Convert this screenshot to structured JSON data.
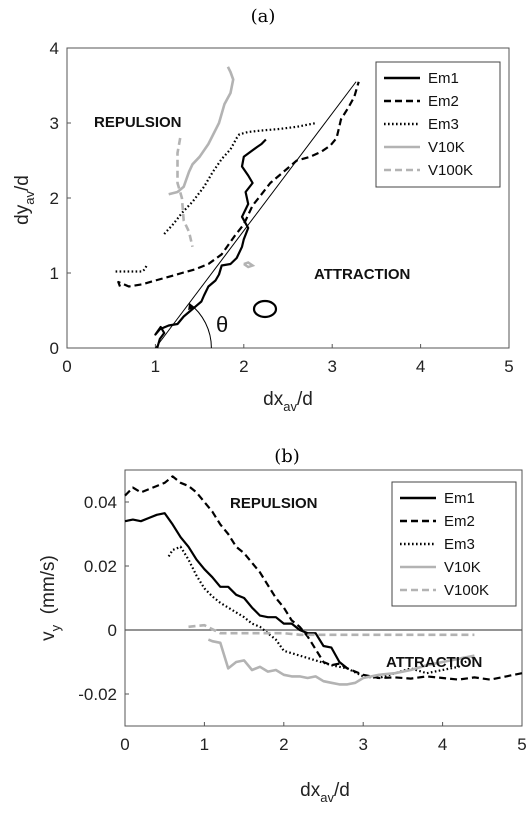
{
  "colors": {
    "black": "#000000",
    "gray": "#b3b3b3"
  },
  "chart_data": [
    {
      "panel_label": "(a)",
      "type": "line",
      "xlabel": {
        "main": "dx",
        "sub": "av",
        "tail": "/d"
      },
      "ylabel": {
        "main": "dy",
        "sub": "av",
        "tail": "/d"
      },
      "xlim": [
        0,
        5
      ],
      "ylim": [
        0,
        4
      ],
      "xticks": [
        "0",
        "1",
        "2",
        "3",
        "4",
        "5"
      ],
      "yticks": [
        "0",
        "1",
        "2",
        "3",
        "4"
      ],
      "annotations": {
        "repulsion": "REPULSION",
        "attraction": "ATTRACTION",
        "theta": "θ"
      },
      "legend": {
        "position": "top-right"
      },
      "series": [
        {
          "name": "Em1",
          "style": "solid",
          "color": "#000000",
          "x": [
            1.02,
            1.05,
            1.1,
            1.06,
            1.0,
            1.05,
            1.15,
            1.25,
            1.32,
            1.4,
            1.45,
            1.52,
            1.55,
            1.6,
            1.68,
            1.72,
            1.75,
            1.85,
            1.92,
            1.98,
            2.0,
            2.05,
            1.98,
            2.05,
            2.02,
            2.1,
            2.05,
            1.98,
            2.0,
            2.08,
            2.15,
            2.2,
            2.25
          ],
          "y": [
            0.0,
            0.12,
            0.2,
            0.28,
            0.18,
            0.25,
            0.3,
            0.32,
            0.42,
            0.5,
            0.55,
            0.62,
            0.7,
            0.82,
            0.9,
            0.98,
            1.1,
            1.12,
            1.2,
            1.35,
            1.45,
            1.6,
            1.75,
            1.92,
            2.08,
            2.2,
            2.3,
            2.42,
            2.55,
            2.62,
            2.68,
            2.72,
            2.78
          ]
        },
        {
          "name": "Em2",
          "style": "dashed",
          "color": "#000000",
          "x": [
            0.6,
            0.58,
            0.7,
            0.85,
            1.0,
            1.15,
            1.3,
            1.45,
            1.6,
            1.75,
            1.9,
            2.0,
            2.1,
            2.2,
            2.3,
            2.4,
            2.5,
            2.6,
            2.75,
            2.88,
            2.98,
            3.05,
            3.1,
            3.18,
            3.25,
            3.3
          ],
          "y": [
            0.82,
            0.88,
            0.82,
            0.85,
            0.9,
            0.95,
            1.0,
            1.05,
            1.12,
            1.25,
            1.5,
            1.65,
            1.9,
            2.05,
            2.2,
            2.3,
            2.4,
            2.5,
            2.55,
            2.62,
            2.7,
            2.8,
            3.05,
            3.2,
            3.35,
            3.55
          ]
        },
        {
          "name": "Em3",
          "style": "dotted",
          "color": "#000000",
          "x": [
            1.1,
            1.2,
            1.3,
            1.42,
            1.55,
            1.65,
            1.75,
            1.85,
            1.92,
            1.95,
            2.05,
            2.2,
            2.4,
            2.6,
            2.82
          ],
          "y": [
            1.52,
            1.65,
            1.8,
            1.95,
            2.15,
            2.35,
            2.52,
            2.65,
            2.8,
            2.85,
            2.88,
            2.9,
            2.92,
            2.95,
            3.0
          ],
          "tail_x": [
            0.55,
            0.7,
            0.85,
            0.88,
            0.9
          ],
          "tail_y": [
            1.02,
            1.02,
            1.02,
            1.05,
            1.1
          ]
        },
        {
          "name": "V10K",
          "style": "solid",
          "color": "#b3b3b3",
          "x": [
            1.15,
            1.25,
            1.32,
            1.38,
            1.42,
            1.5,
            1.6,
            1.72,
            1.78,
            1.85,
            1.88,
            1.85,
            1.82
          ],
          "y": [
            2.05,
            2.08,
            2.15,
            2.35,
            2.45,
            2.55,
            2.72,
            3.0,
            3.25,
            3.4,
            3.58,
            3.68,
            3.75
          ],
          "blob_x": [
            2.0,
            2.05,
            2.1,
            2.05,
            2.0
          ],
          "blob_y": [
            1.12,
            1.08,
            1.1,
            1.14,
            1.12
          ]
        },
        {
          "name": "V100K",
          "style": "dashed",
          "color": "#b3b3b3",
          "x": [
            1.28,
            1.25,
            1.25,
            1.3,
            1.32,
            1.38,
            1.42
          ],
          "y": [
            2.8,
            2.6,
            2.2,
            2.0,
            1.7,
            1.55,
            1.35
          ]
        }
      ],
      "extras": {
        "ref_line_x": [
          1.0,
          3.27
        ],
        "ref_line_y": [
          0.0,
          3.55
        ],
        "theta_arc_center": [
          1.0,
          0.0
        ]
      }
    },
    {
      "panel_label": "(b)",
      "type": "line",
      "xlabel": {
        "main": "dx",
        "sub": "av",
        "tail": "/d"
      },
      "ylabel": {
        "main": "v",
        "sub": "y",
        "tail": "  (mm/s)"
      },
      "xlim": [
        0,
        5
      ],
      "ylim": [
        -0.03,
        0.05
      ],
      "xticks": [
        "0",
        "1",
        "2",
        "3",
        "4",
        "5"
      ],
      "yticks": [
        "-0.02",
        "0",
        "0.02",
        "0.04"
      ],
      "annotations": {
        "repulsion": "REPULSION",
        "attraction": "ATTRACTION"
      },
      "legend": {
        "position": "top-right"
      },
      "series": [
        {
          "name": "Em1",
          "style": "solid",
          "color": "#000000",
          "x": [
            0.0,
            0.1,
            0.2,
            0.3,
            0.4,
            0.5,
            0.6,
            0.7,
            0.8,
            0.9,
            1.0,
            1.1,
            1.2,
            1.3,
            1.4,
            1.5,
            1.6,
            1.7,
            1.8,
            1.9,
            2.0,
            2.1,
            2.2,
            2.3,
            2.4,
            2.5,
            2.6,
            2.7,
            2.8
          ],
          "y": [
            0.034,
            0.0345,
            0.034,
            0.035,
            0.036,
            0.0365,
            0.033,
            0.029,
            0.026,
            0.022,
            0.019,
            0.0165,
            0.0135,
            0.0135,
            0.011,
            0.01,
            0.007,
            0.0045,
            0.004,
            0.004,
            0.002,
            0.002,
            0.0,
            -0.001,
            -0.001,
            -0.005,
            -0.0055,
            -0.01,
            -0.012
          ]
        },
        {
          "name": "Em2",
          "style": "dashed",
          "color": "#000000",
          "x": [
            0.0,
            0.1,
            0.2,
            0.3,
            0.4,
            0.5,
            0.6,
            0.7,
            0.8,
            0.9,
            1.0,
            1.1,
            1.2,
            1.3,
            1.4,
            1.5,
            1.6,
            1.7,
            1.8,
            1.9,
            2.0,
            2.1,
            2.2,
            2.3,
            2.4,
            2.5,
            2.6,
            2.7,
            2.8,
            2.9,
            3.0,
            3.2,
            3.4,
            3.6,
            3.8,
            4.0,
            4.2,
            4.4,
            4.6,
            4.8,
            5.0
          ],
          "y": [
            0.042,
            0.0445,
            0.043,
            0.044,
            0.045,
            0.046,
            0.048,
            0.046,
            0.045,
            0.043,
            0.04,
            0.037,
            0.033,
            0.03,
            0.026,
            0.024,
            0.021,
            0.018,
            0.014,
            0.01,
            0.007,
            0.003,
            0.001,
            -0.002,
            -0.006,
            -0.01,
            -0.011,
            -0.0105,
            -0.012,
            -0.013,
            -0.014,
            -0.015,
            -0.0148,
            -0.0152,
            -0.0145,
            -0.015,
            -0.0155,
            -0.0148,
            -0.0155,
            -0.0145,
            -0.0135
          ]
        },
        {
          "name": "Em3",
          "style": "dotted",
          "color": "#000000",
          "x": [
            0.55,
            0.6,
            0.7,
            0.8,
            0.9,
            1.0,
            1.1,
            1.2,
            1.3,
            1.4,
            1.5,
            1.6,
            1.7,
            1.8,
            1.9,
            2.0,
            2.2,
            2.4,
            2.6,
            2.8,
            3.0,
            3.2,
            3.4,
            3.6,
            3.8,
            4.0,
            4.2,
            4.4
          ],
          "y": [
            0.023,
            0.025,
            0.026,
            0.022,
            0.017,
            0.013,
            0.0105,
            0.0085,
            0.007,
            0.0055,
            0.004,
            0.002,
            0.001,
            -0.001,
            -0.003,
            -0.0065,
            -0.008,
            -0.0095,
            -0.011,
            -0.012,
            -0.0145,
            -0.015,
            -0.0135,
            -0.012,
            -0.0135,
            -0.0125,
            -0.0115,
            -0.008
          ]
        },
        {
          "name": "V10K",
          "style": "solid",
          "color": "#b3b3b3",
          "x": [
            1.05,
            1.1,
            1.2,
            1.3,
            1.4,
            1.5,
            1.6,
            1.7,
            1.8,
            1.9,
            2.0,
            2.1,
            2.2,
            2.3,
            2.4,
            2.5,
            2.6,
            2.7,
            2.8,
            2.9,
            3.0,
            3.2,
            3.4,
            3.6,
            3.8,
            4.0,
            4.2,
            4.4
          ],
          "y": [
            -0.003,
            -0.0035,
            -0.004,
            -0.012,
            -0.01,
            -0.0095,
            -0.0125,
            -0.0115,
            -0.013,
            -0.0125,
            -0.014,
            -0.0145,
            -0.0145,
            -0.015,
            -0.0145,
            -0.016,
            -0.0165,
            -0.017,
            -0.017,
            -0.0165,
            -0.015,
            -0.014,
            -0.0135,
            -0.0125,
            -0.011,
            -0.01,
            -0.009,
            -0.008
          ]
        },
        {
          "name": "V100K",
          "style": "dashed",
          "color": "#b3b3b3",
          "x": [
            0.8,
            1.0,
            1.2,
            1.4,
            1.6,
            1.8,
            2.0,
            2.2,
            2.4,
            2.6,
            2.8,
            3.0,
            3.2,
            3.4,
            3.6,
            3.8,
            4.0,
            4.2,
            4.4
          ],
          "y": [
            0.001,
            0.0015,
            -0.001,
            -0.001,
            -0.001,
            -0.001,
            -0.001,
            -0.0015,
            -0.0015,
            -0.0015,
            -0.0015,
            -0.0015,
            -0.0015,
            -0.0015,
            -0.0015,
            -0.0015,
            -0.0015,
            -0.0015,
            -0.0015
          ]
        }
      ],
      "extras": {
        "zero_line": true
      }
    }
  ]
}
